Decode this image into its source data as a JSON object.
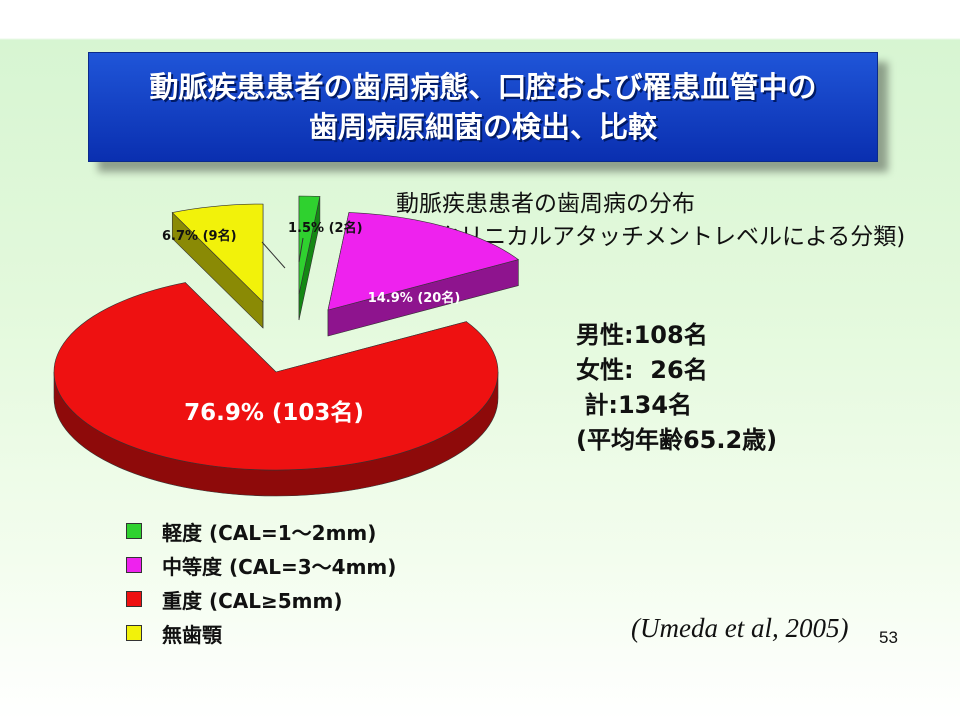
{
  "slide": {
    "title_line1": "動脈疾患患者の歯周病態、口腔および罹患血管中の",
    "title_line2": "歯周病原細菌の検出、比較",
    "page_number": "53",
    "citation": "(Umeda et al, 2005)"
  },
  "stats": {
    "male": "男性:108名",
    "female": "女性:  26名",
    "total": " 計:134名",
    "avg_age": "(平均年齢65.2歳)"
  },
  "chart_data": {
    "type": "pie",
    "title": "動脈疾患患者の歯周病の分布",
    "subtitle": "(クリニカルアタッチメントレベルによる分類)",
    "slices": [
      {
        "legend": "軽度 (CAL=1～2mm)",
        "percent": 1.5,
        "count": 2,
        "label": "1.5% (2名)",
        "color": "#2fd12f",
        "side_color": "#148814"
      },
      {
        "legend": "中等度 (CAL=3～4mm)",
        "percent": 14.9,
        "count": 20,
        "label": "14.9% (20名)",
        "color": "#ee22ee",
        "side_color": "#8e148e"
      },
      {
        "legend": "重度 (CAL≥5mm)",
        "percent": 76.9,
        "count": 103,
        "label": "76.9% (103名)",
        "color": "#ee1111",
        "side_color": "#8e0a0a"
      },
      {
        "legend": "無歯顎",
        "percent": 6.7,
        "count": 9,
        "label": "6.7% (9名)",
        "color": "#f2f20a",
        "side_color": "#8a8a05"
      }
    ]
  }
}
